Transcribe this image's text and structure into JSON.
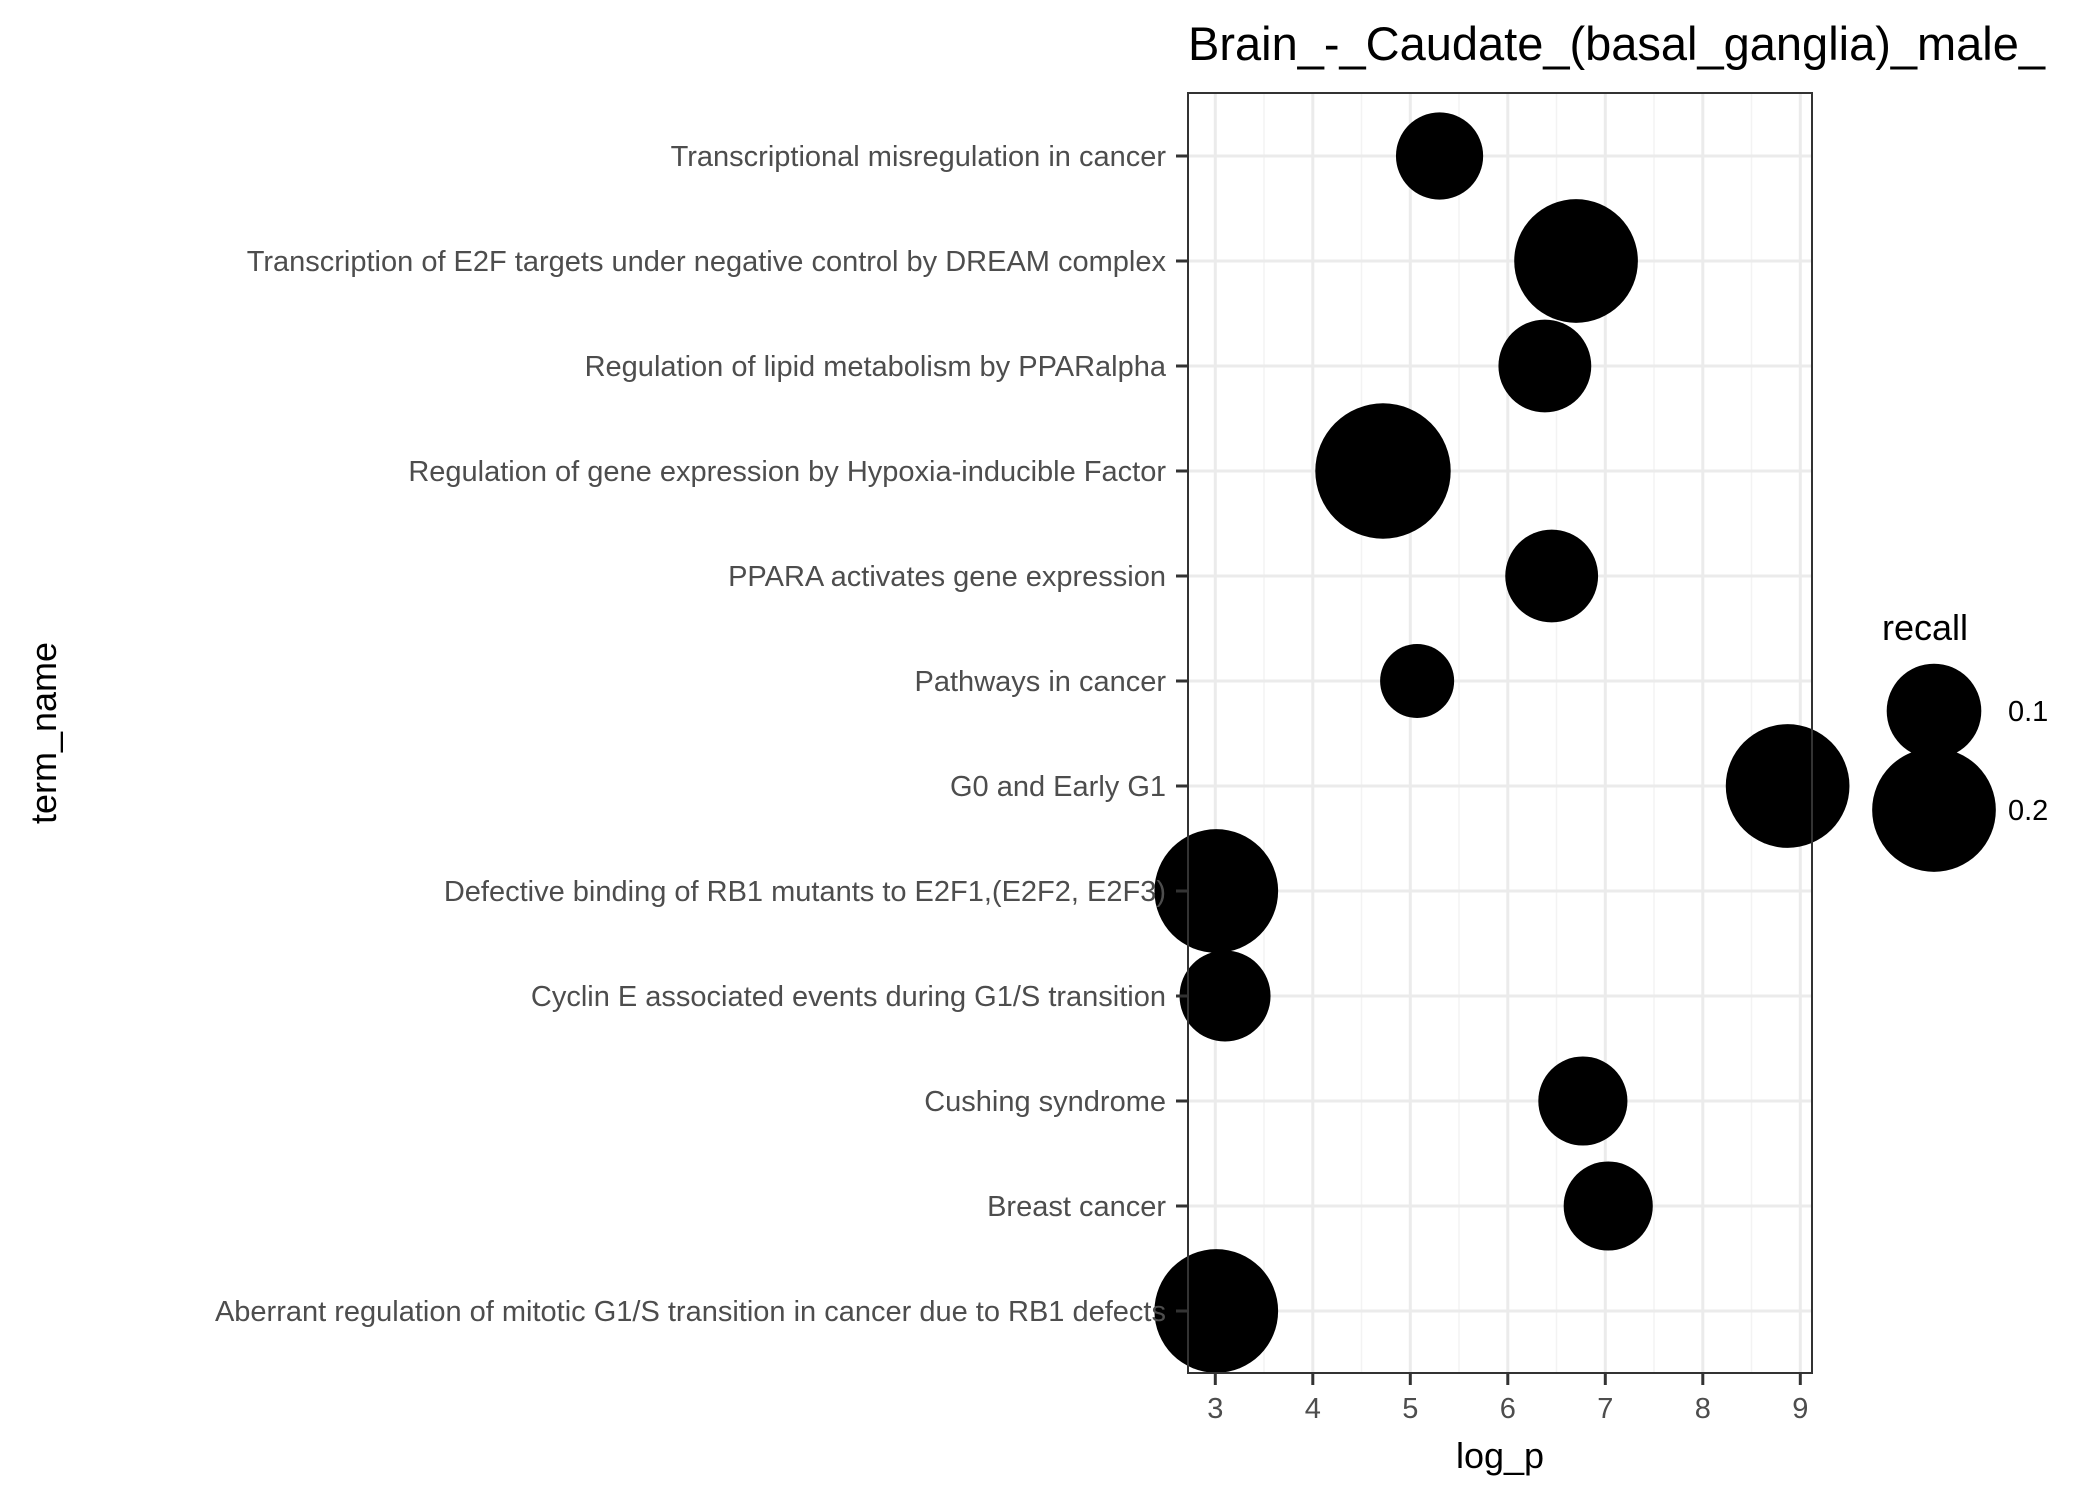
{
  "chart_data": {
    "type": "scatter",
    "title": "Brain_-_Caudate_(basal_ganglia)_male_",
    "xlabel": "log_p",
    "ylabel": "term_name",
    "xlim": [
      2.72,
      9.12
    ],
    "xticks": [
      3,
      4,
      5,
      6,
      7,
      8,
      9
    ],
    "grid": true,
    "size_legend": {
      "title": "recall",
      "entries": [
        {
          "label": "0.1",
          "value": 0.1
        },
        {
          "label": "0.2",
          "value": 0.2
        }
      ]
    },
    "points": [
      {
        "term_name": "Transcriptional misregulation in cancer",
        "log_p": 5.3,
        "recall": 0.08
      },
      {
        "term_name": "Transcription of E2F targets under negative control by DREAM complex",
        "log_p": 6.7,
        "recall": 0.2
      },
      {
        "term_name": "Regulation of lipid metabolism by PPARalpha",
        "log_p": 6.38,
        "recall": 0.095
      },
      {
        "term_name": "Regulation of gene expression by Hypoxia-inducible Factor",
        "log_p": 4.72,
        "recall": 0.25
      },
      {
        "term_name": "PPARA activates gene expression",
        "log_p": 6.45,
        "recall": 0.095
      },
      {
        "term_name": "Pathways in cancer",
        "log_p": 5.07,
        "recall": 0.05
      },
      {
        "term_name": "G0 and Early G1",
        "log_p": 8.87,
        "recall": 0.2
      },
      {
        "term_name": "Defective binding of RB1 mutants to E2F1,(E2F2, E2F3)",
        "log_p": 3.01,
        "recall": 0.2
      },
      {
        "term_name": "Cyclin E associated events during G1/S transition ",
        "log_p": 3.1,
        "recall": 0.09
      },
      {
        "term_name": "Cushing syndrome",
        "log_p": 6.77,
        "recall": 0.085
      },
      {
        "term_name": "Breast cancer",
        "log_p": 7.03,
        "recall": 0.085
      },
      {
        "term_name": "Aberrant regulation of mitotic G1/S transition in cancer due to RB1 defects",
        "log_p": 3.01,
        "recall": 0.2
      }
    ]
  },
  "colors": {
    "point": "#000000",
    "grid_major": "#ebebeb",
    "grid_minor": "#f3f3f3",
    "panel_border": "#333333",
    "tick_text": "#4d4d4d"
  }
}
